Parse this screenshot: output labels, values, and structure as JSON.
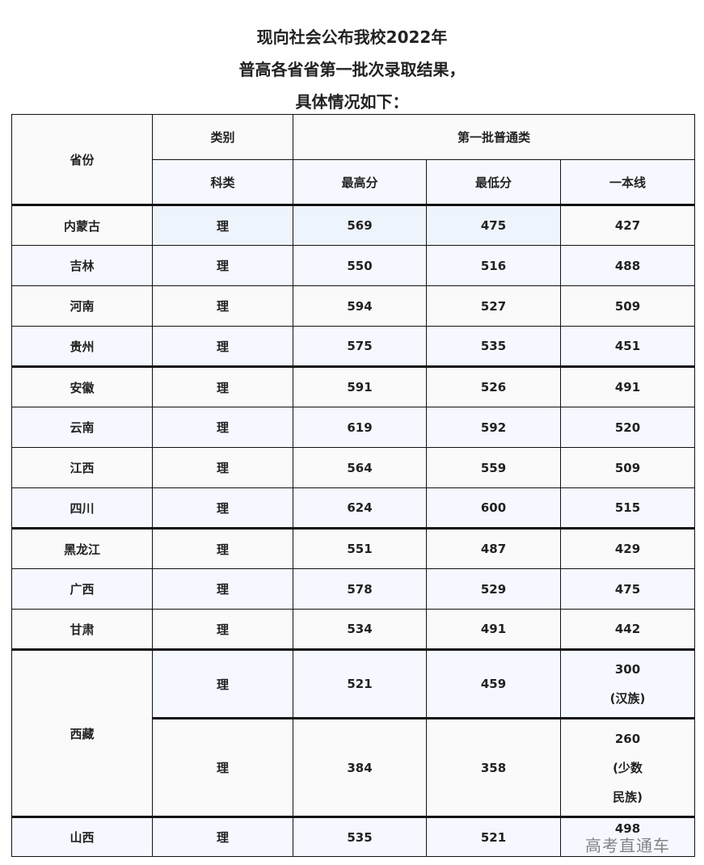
{
  "title_lines": [
    "现向社会公布我校2022年",
    "普高各省省第一批次录取结果，",
    "具体情况如下："
  ],
  "header": {
    "province": "省份",
    "category": "类别",
    "batch": "第一批普通类",
    "subject": "科类",
    "max": "最高分",
    "min": "最低分",
    "line": "一本线"
  },
  "rows": [
    {
      "province": "内蒙古",
      "subject": "理",
      "max": "569",
      "min": "475",
      "line": "427"
    },
    {
      "province": "吉林",
      "subject": "理",
      "max": "550",
      "min": "516",
      "line": "488"
    },
    {
      "province": "河南",
      "subject": "理",
      "max": "594",
      "min": "527",
      "line": "509"
    },
    {
      "province": "贵州",
      "subject": "理",
      "max": "575",
      "min": "535",
      "line": "451"
    },
    {
      "province": "安徽",
      "subject": "理",
      "max": "591",
      "min": "526",
      "line": "491"
    },
    {
      "province": "云南",
      "subject": "理",
      "max": "619",
      "min": "592",
      "line": "520"
    },
    {
      "province": "江西",
      "subject": "理",
      "max": "564",
      "min": "559",
      "line": "509"
    },
    {
      "province": "四川",
      "subject": "理",
      "max": "624",
      "min": "600",
      "line": "515"
    },
    {
      "province": "黑龙江",
      "subject": "理",
      "max": "551",
      "min": "487",
      "line": "429"
    },
    {
      "province": "广西",
      "subject": "理",
      "max": "578",
      "min": "529",
      "line": "475"
    },
    {
      "province": "甘肃",
      "subject": "理",
      "max": "534",
      "min": "491",
      "line": "442"
    }
  ],
  "xizang": {
    "province": "西藏",
    "a": {
      "subject": "理",
      "max": "521",
      "min": "459",
      "line": "300",
      "note": "(汉族)"
    },
    "b": {
      "subject": "理",
      "max": "384",
      "min": "358",
      "line": "260",
      "note1": "(少数",
      "note2": "民族)"
    }
  },
  "shanxi": {
    "province": "山西",
    "subject": "理",
    "max": "535",
    "min": "521",
    "line": "498"
  },
  "watermark": "高考直通车"
}
